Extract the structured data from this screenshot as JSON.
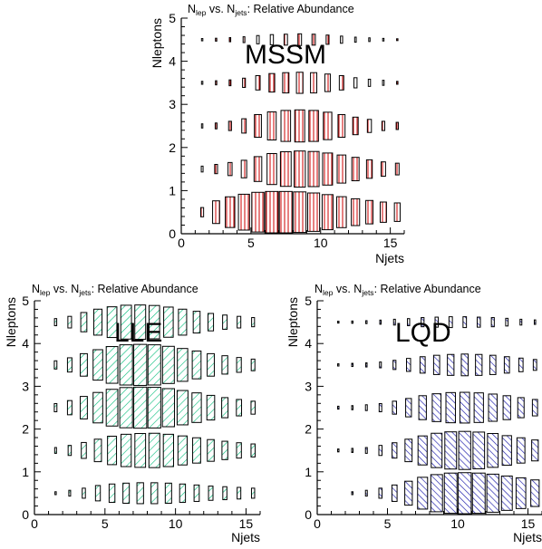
{
  "chart_data": [
    {
      "type": "box",
      "name": "MSSM",
      "title_parts": [
        "N",
        "lep",
        " vs. N",
        "jets",
        ": Relative Abundance"
      ],
      "label": "MSSM",
      "xlabel": "Njets",
      "ylabel": "Nleptons",
      "xlim": [
        0,
        16
      ],
      "ylim": [
        0,
        5
      ],
      "xticks": [
        0,
        5,
        10,
        15
      ],
      "yticks": [
        0,
        1,
        2,
        3,
        4,
        5
      ],
      "hatch": "vertical",
      "color": "#cc0000",
      "x": [
        0.5,
        1.5,
        2.5,
        3.5,
        4.5,
        5.5,
        6.5,
        7.5,
        8.5,
        9.5,
        10.5,
        11.5,
        12.5,
        13.5,
        14.5,
        15.5
      ],
      "rows": [
        {
          "y": 0.5,
          "values": [
            0,
            0.05,
            0.3,
            0.55,
            0.75,
            0.92,
            1.0,
            1.0,
            0.96,
            0.86,
            0.72,
            0.56,
            0.42,
            0.32,
            0.24,
            0.2
          ]
        },
        {
          "y": 1.5,
          "values": [
            0,
            0.02,
            0.05,
            0.1,
            0.18,
            0.36,
            0.56,
            0.7,
            0.76,
            0.72,
            0.6,
            0.46,
            0.32,
            0.2,
            0.12,
            0.08
          ]
        },
        {
          "y": 2.5,
          "values": [
            0,
            0.01,
            0.02,
            0.05,
            0.12,
            0.3,
            0.46,
            0.56,
            0.6,
            0.56,
            0.44,
            0.3,
            0.18,
            0.1,
            0.05,
            0.03
          ]
        },
        {
          "y": 3.5,
          "values": [
            0,
            0.005,
            0.01,
            0.02,
            0.05,
            0.12,
            0.2,
            0.24,
            0.26,
            0.24,
            0.18,
            0.12,
            0.06,
            0.03,
            0.015,
            0.005
          ]
        },
        {
          "y": 4.5,
          "values": [
            0,
            0.003,
            0.005,
            0.01,
            0.02,
            0.04,
            0.06,
            0.07,
            0.08,
            0.07,
            0.05,
            0.03,
            0.015,
            0.008,
            0.004,
            0.002
          ]
        }
      ]
    },
    {
      "type": "box",
      "name": "LLE",
      "title_parts": [
        "N",
        "lep",
        " vs. N",
        "jets",
        ": Relative Abundance"
      ],
      "label": "LLE",
      "xlabel": "Njets",
      "ylabel": "Nleptons",
      "xlim": [
        0,
        16
      ],
      "ylim": [
        0,
        5
      ],
      "xticks": [
        0,
        5,
        10,
        15
      ],
      "yticks": [
        0,
        1,
        2,
        3,
        4,
        5
      ],
      "hatch": "diagonal",
      "color": "#00bb77",
      "x": [
        0.5,
        1.5,
        2.5,
        3.5,
        4.5,
        5.5,
        6.5,
        7.5,
        8.5,
        9.5,
        10.5,
        11.5,
        12.5,
        13.5,
        14.5,
        15.5
      ],
      "rows": [
        {
          "y": 0.5,
          "values": [
            0,
            0.005,
            0.02,
            0.06,
            0.14,
            0.2,
            0.24,
            0.26,
            0.26,
            0.24,
            0.2,
            0.16,
            0.12,
            0.1,
            0.08,
            0.06
          ]
        },
        {
          "y": 1.5,
          "values": [
            0,
            0.02,
            0.06,
            0.15,
            0.3,
            0.48,
            0.62,
            0.68,
            0.7,
            0.62,
            0.5,
            0.38,
            0.28,
            0.2,
            0.14,
            0.1
          ]
        },
        {
          "y": 2.5,
          "values": [
            0,
            0.04,
            0.12,
            0.3,
            0.55,
            0.8,
            0.96,
            1.0,
            0.98,
            0.86,
            0.7,
            0.52,
            0.36,
            0.24,
            0.16,
            0.1
          ]
        },
        {
          "y": 3.5,
          "values": [
            0,
            0.04,
            0.12,
            0.3,
            0.55,
            0.8,
            0.96,
            1.0,
            0.96,
            0.82,
            0.64,
            0.46,
            0.3,
            0.2,
            0.13,
            0.08
          ]
        },
        {
          "y": 4.5,
          "values": [
            0,
            0.03,
            0.08,
            0.22,
            0.4,
            0.56,
            0.68,
            0.7,
            0.66,
            0.54,
            0.4,
            0.28,
            0.18,
            0.12,
            0.08,
            0.05
          ]
        }
      ]
    },
    {
      "type": "box",
      "name": "LQD",
      "title_parts": [
        "N",
        "lep",
        " vs. N",
        "jets",
        ": Relative Abundance"
      ],
      "label": "LQD",
      "xlabel": "Njets",
      "ylabel": "Nleptons",
      "xlim": [
        0,
        16
      ],
      "ylim": [
        0,
        5
      ],
      "xticks": [
        0,
        5,
        10,
        15
      ],
      "yticks": [
        0,
        1,
        2,
        3,
        4,
        5
      ],
      "hatch": "backdiagonal",
      "color": "#1a1aaa",
      "x": [
        0.5,
        1.5,
        2.5,
        3.5,
        4.5,
        5.5,
        6.5,
        7.5,
        8.5,
        9.5,
        10.5,
        11.5,
        12.5,
        13.5,
        14.5,
        15.5
      ],
      "rows": [
        {
          "y": 0.5,
          "values": [
            0,
            0,
            0.005,
            0.02,
            0.06,
            0.16,
            0.34,
            0.6,
            0.82,
            0.96,
            1.0,
            0.96,
            0.86,
            0.7,
            0.56,
            0.42
          ]
        },
        {
          "y": 1.5,
          "values": [
            0,
            0.005,
            0.01,
            0.02,
            0.06,
            0.14,
            0.3,
            0.5,
            0.7,
            0.82,
            0.86,
            0.8,
            0.68,
            0.52,
            0.38,
            0.26
          ]
        },
        {
          "y": 2.5,
          "values": [
            0,
            0.005,
            0.01,
            0.02,
            0.04,
            0.1,
            0.2,
            0.34,
            0.46,
            0.54,
            0.56,
            0.52,
            0.44,
            0.34,
            0.24,
            0.16
          ]
        },
        {
          "y": 3.5,
          "values": [
            0,
            0.003,
            0.006,
            0.01,
            0.02,
            0.05,
            0.1,
            0.16,
            0.22,
            0.26,
            0.28,
            0.26,
            0.22,
            0.16,
            0.11,
            0.07
          ]
        },
        {
          "y": 4.5,
          "values": [
            0,
            0.002,
            0.003,
            0.005,
            0.01,
            0.02,
            0.03,
            0.05,
            0.06,
            0.07,
            0.07,
            0.06,
            0.05,
            0.035,
            0.02,
            0.012
          ]
        }
      ]
    }
  ]
}
